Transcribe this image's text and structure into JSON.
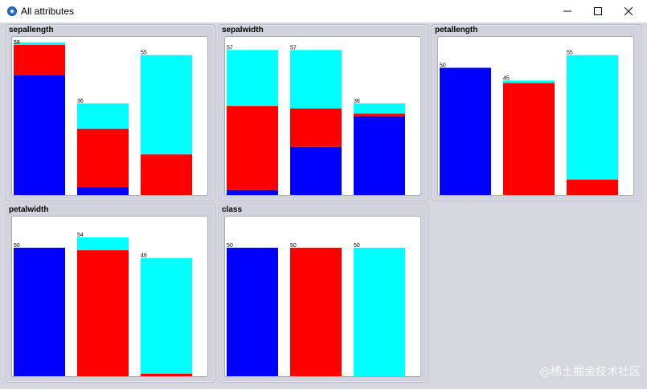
{
  "window": {
    "title": "All attributes",
    "controls": [
      "minimize-icon",
      "maximize-icon",
      "close-icon"
    ]
  },
  "colors": {
    "class_1": "#0000ff",
    "class_2": "#ff0000",
    "class_3": "#00ffff",
    "panel_bg": "#d0d3db",
    "plot_bg": "#ffffff"
  },
  "chart_data": [
    {
      "type": "bar",
      "title": "sepallength",
      "stacked": true,
      "series_colors": [
        "#0000ff",
        "#ff0000",
        "#00ffff"
      ],
      "bars": [
        {
          "total": 59,
          "label": "59",
          "segments": [
            47,
            12,
            1
          ]
        },
        {
          "total": 36,
          "label": "36",
          "segments": [
            3,
            23,
            10
          ]
        },
        {
          "total": 55,
          "label": "55",
          "segments": [
            0,
            16,
            39
          ]
        }
      ]
    },
    {
      "type": "bar",
      "title": "sepalwidth",
      "stacked": true,
      "series_colors": [
        "#0000ff",
        "#ff0000",
        "#00ffff"
      ],
      "bars": [
        {
          "total": 57,
          "label": "57",
          "segments": [
            2,
            33,
            22
          ]
        },
        {
          "total": 57,
          "label": "57",
          "segments": [
            19,
            15,
            23
          ]
        },
        {
          "total": 36,
          "label": "36",
          "segments": [
            31,
            1,
            4
          ]
        }
      ]
    },
    {
      "type": "bar",
      "title": "petallength",
      "stacked": true,
      "series_colors": [
        "#0000ff",
        "#ff0000",
        "#00ffff"
      ],
      "bars": [
        {
          "total": 50,
          "label": "50",
          "segments": [
            50,
            0,
            0
          ]
        },
        {
          "total": 45,
          "label": "45",
          "segments": [
            0,
            44,
            1
          ]
        },
        {
          "total": 55,
          "label": "55",
          "segments": [
            0,
            6,
            49
          ]
        }
      ]
    },
    {
      "type": "bar",
      "title": "petalwidth",
      "stacked": true,
      "series_colors": [
        "#0000ff",
        "#ff0000",
        "#00ffff"
      ],
      "bars": [
        {
          "total": 50,
          "label": "50",
          "segments": [
            50,
            0,
            0
          ]
        },
        {
          "total": 54,
          "label": "54",
          "segments": [
            0,
            49,
            5
          ]
        },
        {
          "total": 46,
          "label": "46",
          "segments": [
            0,
            1,
            45
          ]
        }
      ]
    },
    {
      "type": "bar",
      "title": "class",
      "stacked": true,
      "series_colors": [
        "#0000ff",
        "#ff0000",
        "#00ffff"
      ],
      "bars": [
        {
          "total": 50,
          "label": "50",
          "segments": [
            50,
            0,
            0
          ]
        },
        {
          "total": 50,
          "label": "50",
          "segments": [
            0,
            50,
            0
          ]
        },
        {
          "total": 50,
          "label": "50",
          "segments": [
            0,
            0,
            50
          ]
        }
      ]
    }
  ],
  "watermark": "@稀土掘金技术社区"
}
